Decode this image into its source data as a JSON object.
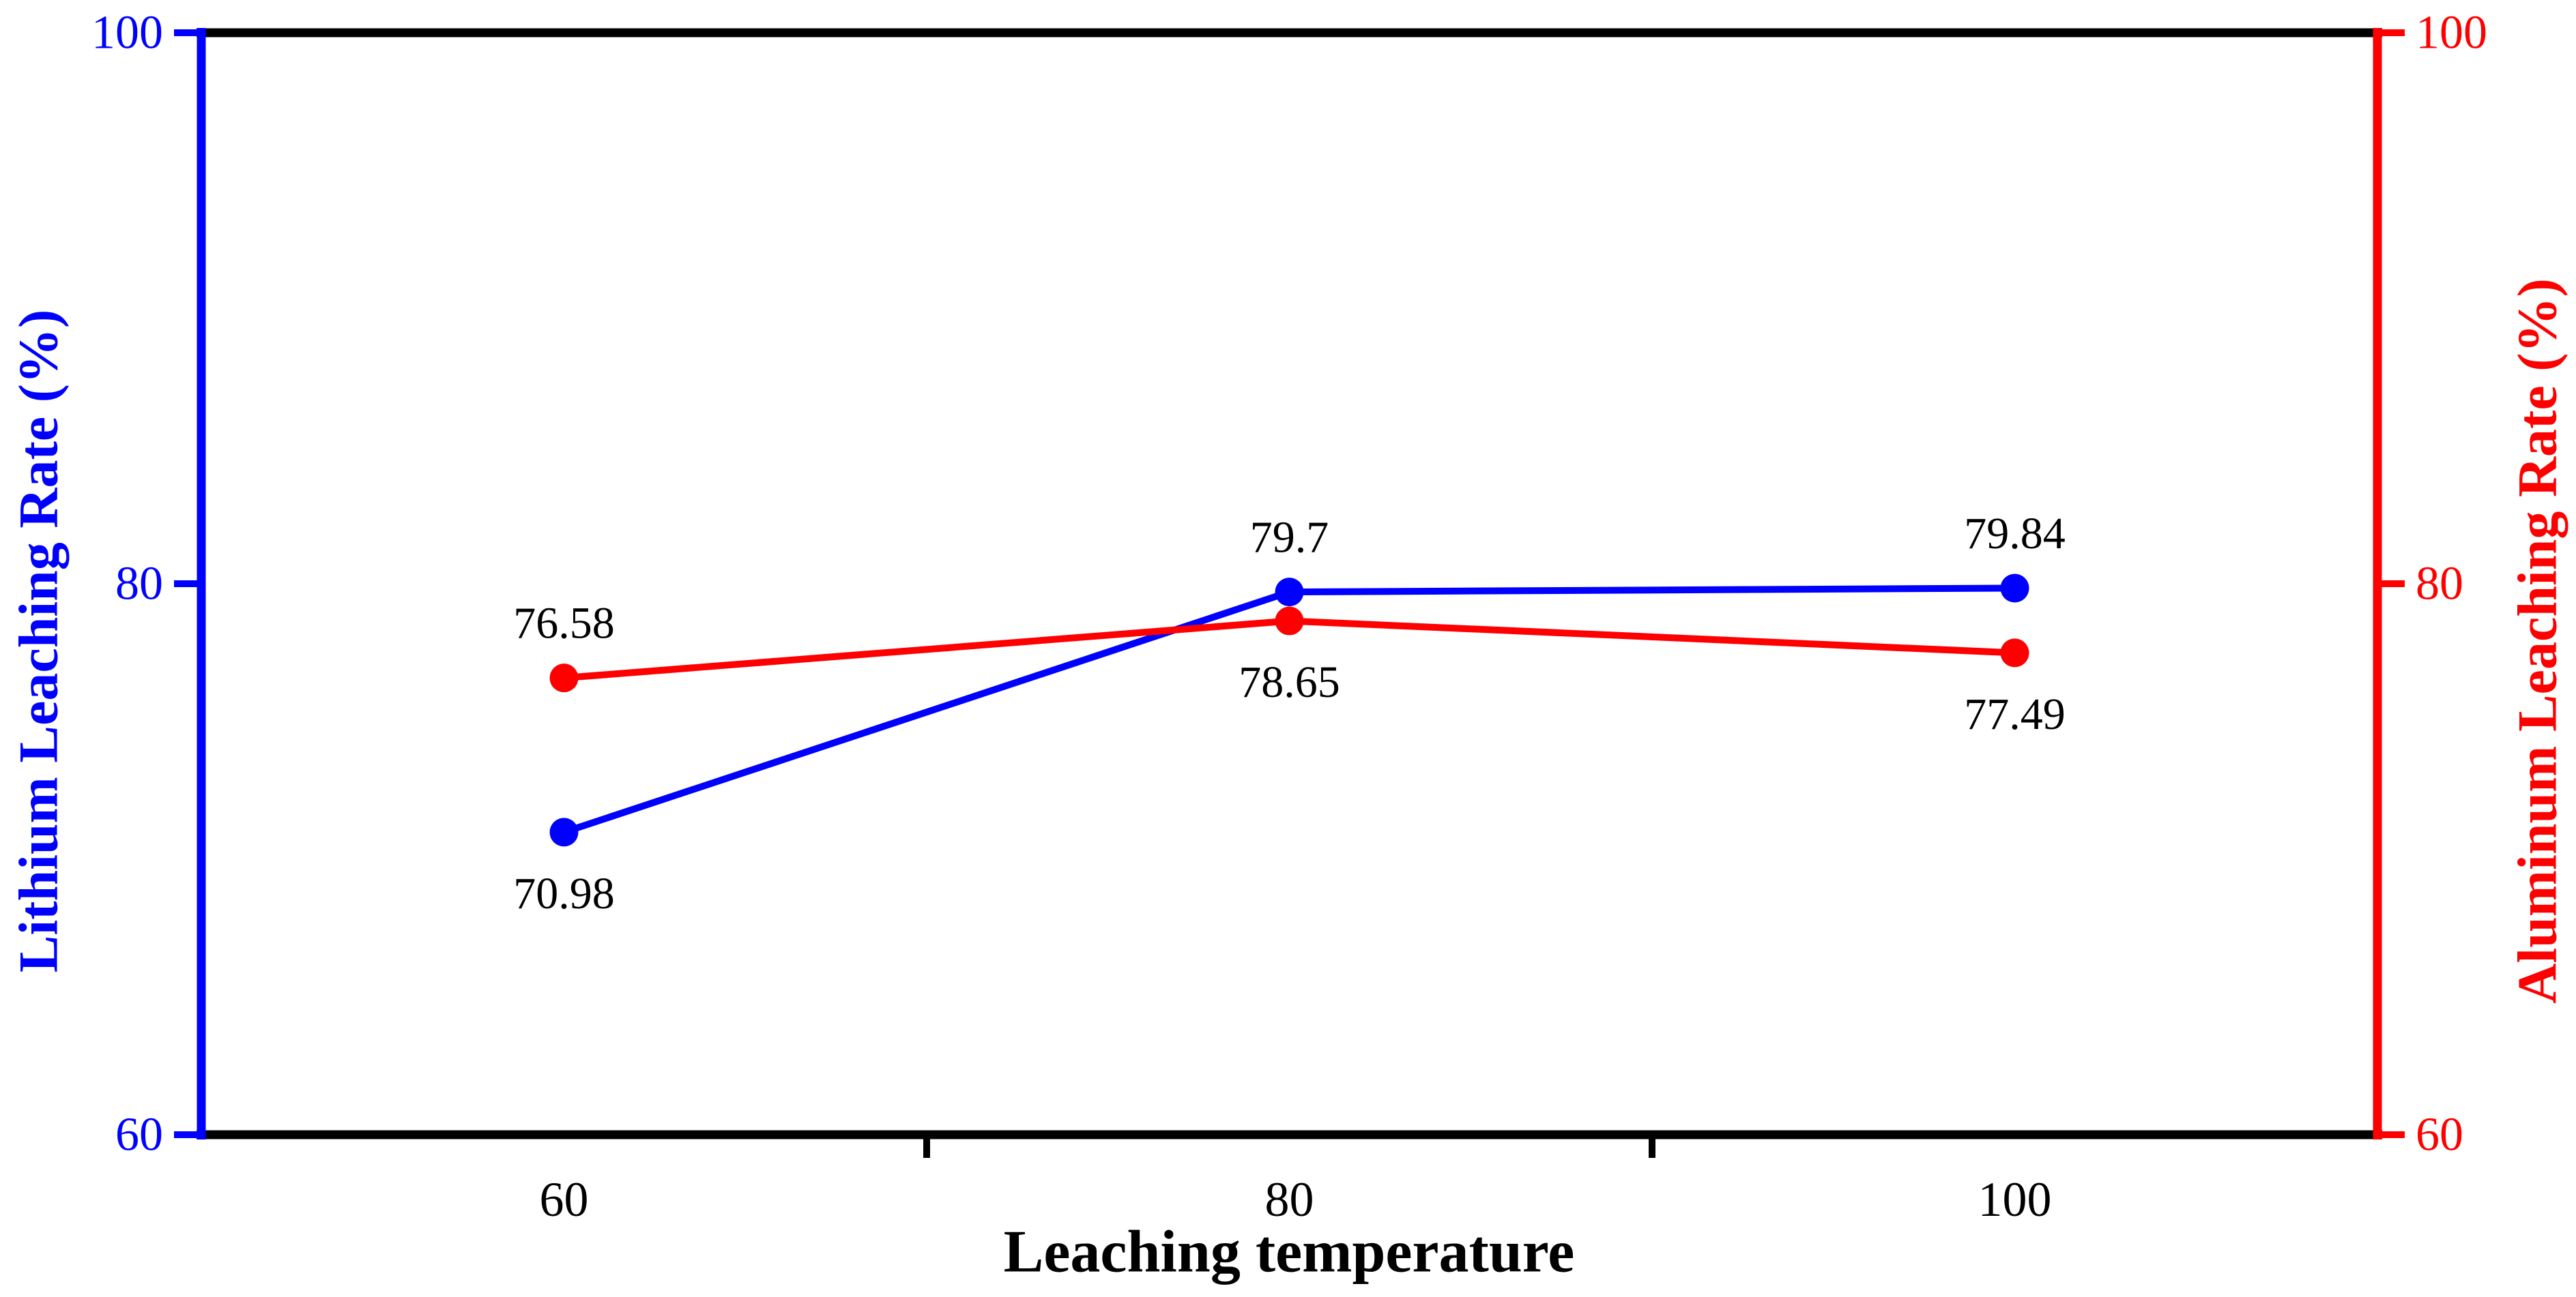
{
  "chart_data": {
    "type": "line",
    "title": "",
    "xlabel": "Leaching temperature",
    "x_categories": [
      "60",
      "80",
      "100"
    ],
    "grid": false,
    "legend": false,
    "axes": {
      "left": {
        "label": "Lithium Leaching Rate (%)",
        "color": "#0000ff",
        "min": 60,
        "max": 100,
        "tick_values": [
          60,
          80,
          100
        ],
        "tick_labels": [
          "60",
          "80",
          "100"
        ]
      },
      "right": {
        "label": "Aluminum Leaching Rate (%)",
        "color": "#ff0000",
        "min": 60,
        "max": 100,
        "tick_values": [
          60,
          80,
          100
        ],
        "tick_labels": [
          "60",
          "80",
          "100"
        ]
      }
    },
    "series": [
      {
        "name": "Lithium Leaching Rate",
        "axis": "left",
        "color": "#0000ff",
        "values": [
          70.98,
          79.7,
          79.84
        ],
        "point_labels": [
          "70.98",
          "79.7",
          "79.84"
        ],
        "point_label_positions": [
          "below",
          "above",
          "above"
        ]
      },
      {
        "name": "Aluminum Leaching Rate",
        "axis": "right",
        "color": "#ff0000",
        "values": [
          76.58,
          78.65,
          77.49
        ],
        "point_labels": [
          "76.58",
          "78.65",
          "77.49"
        ],
        "point_label_positions": [
          "above",
          "below",
          "below"
        ]
      }
    ],
    "styles": {
      "background": "#ffffff",
      "frame_color": "#000000",
      "point_label_color": "#000000"
    }
  }
}
